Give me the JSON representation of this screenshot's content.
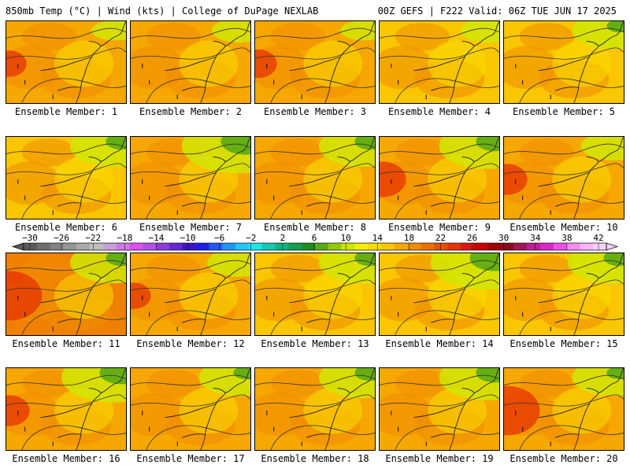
{
  "header": {
    "title_left": "850mb Temp (°C) | Wind (kts) | College of DuPage NEXLAB",
    "title_right": "00Z GEFS | F222 Valid: 06Z TUE JUN 17 2025"
  },
  "panels": [
    {
      "label": "Ensemble Member: 1",
      "base": "#f6a700",
      "cool": 0.1,
      "hot": 0.3
    },
    {
      "label": "Ensemble Member: 2",
      "base": "#f6a700",
      "cool": 0.2,
      "hot": 0.2
    },
    {
      "label": "Ensemble Member: 3",
      "base": "#f6a700",
      "cool": 0.1,
      "hot": 0.35
    },
    {
      "label": "Ensemble Member: 4",
      "base": "#f9c600",
      "cool": 0.2,
      "hot": 0.1
    },
    {
      "label": "Ensemble Member: 5",
      "base": "#f9c600",
      "cool": 0.5,
      "hot": 0.1
    },
    {
      "label": "Ensemble Member: 6",
      "base": "#f9c600",
      "cool": 0.6,
      "hot": 0.2
    },
    {
      "label": "Ensemble Member: 7",
      "base": "#f6a700",
      "cool": 0.9,
      "hot": 0.2
    },
    {
      "label": "Ensemble Member: 8",
      "base": "#f6a700",
      "cool": 0.6,
      "hot": 0.2
    },
    {
      "label": "Ensemble Member: 9",
      "base": "#f6a700",
      "cool": 0.7,
      "hot": 0.5
    },
    {
      "label": "Ensemble Member: 10",
      "base": "#f6a700",
      "cool": 0.3,
      "hot": 0.4
    },
    {
      "label": "Ensemble Member: 11",
      "base": "#f08000",
      "cool": 0.6,
      "hot": 0.8
    },
    {
      "label": "Ensemble Member: 12",
      "base": "#f6a700",
      "cool": 0.3,
      "hot": 0.3
    },
    {
      "label": "Ensemble Member: 13",
      "base": "#f9c600",
      "cool": 0.6,
      "hot": 0.1
    },
    {
      "label": "Ensemble Member: 14",
      "base": "#f9c600",
      "cool": 0.9,
      "hot": 0.1
    },
    {
      "label": "Ensemble Member: 15",
      "base": "#f9c600",
      "cool": 0.6,
      "hot": 0.2
    },
    {
      "label": "Ensemble Member: 16",
      "base": "#f6a700",
      "cool": 0.8,
      "hot": 0.4
    },
    {
      "label": "Ensemble Member: 17",
      "base": "#f6a700",
      "cool": 0.5,
      "hot": 0.2
    },
    {
      "label": "Ensemble Member: 18",
      "base": "#f6a700",
      "cool": 0.6,
      "hot": 0.1
    },
    {
      "label": "Ensemble Member: 19",
      "base": "#f6a700",
      "cool": 0.7,
      "hot": 0.2
    },
    {
      "label": "Ensemble Member: 20",
      "base": "#f6a700",
      "cool": 0.5,
      "hot": 0.8
    }
  ],
  "colorbar": {
    "ticks": [
      "−30",
      "−26",
      "−22",
      "−18",
      "−14",
      "−10",
      "−6",
      "−2",
      "2",
      "6",
      "10",
      "14",
      "18",
      "22",
      "26",
      "30",
      "34",
      "38",
      "42"
    ],
    "colors": [
      "#5a5a5a",
      "#6e6e6e",
      "#828282",
      "#969696",
      "#aaaaaa",
      "#bebebe",
      "#c8a0dc",
      "#d278e6",
      "#dc50f0",
      "#b450e6",
      "#8c3cdc",
      "#6428d2",
      "#3c14c8",
      "#1e1ee6",
      "#1e5af0",
      "#1e96f5",
      "#1ec8fa",
      "#1ee6e6",
      "#14c8b4",
      "#0ab482",
      "#10a050",
      "#1e8c1e",
      "#5aaa14",
      "#96c80a",
      "#d2e600",
      "#f0f000",
      "#f9dc00",
      "#f9c600",
      "#f6a700",
      "#f08c00",
      "#eb7000",
      "#e65000",
      "#e63200",
      "#dc1414",
      "#c80000",
      "#a00000",
      "#8c0a1e",
      "#a0145a",
      "#be1e96",
      "#dc28c8",
      "#f050e6",
      "#f78cf0",
      "#fab4f5",
      "#fcd2fa"
    ]
  }
}
